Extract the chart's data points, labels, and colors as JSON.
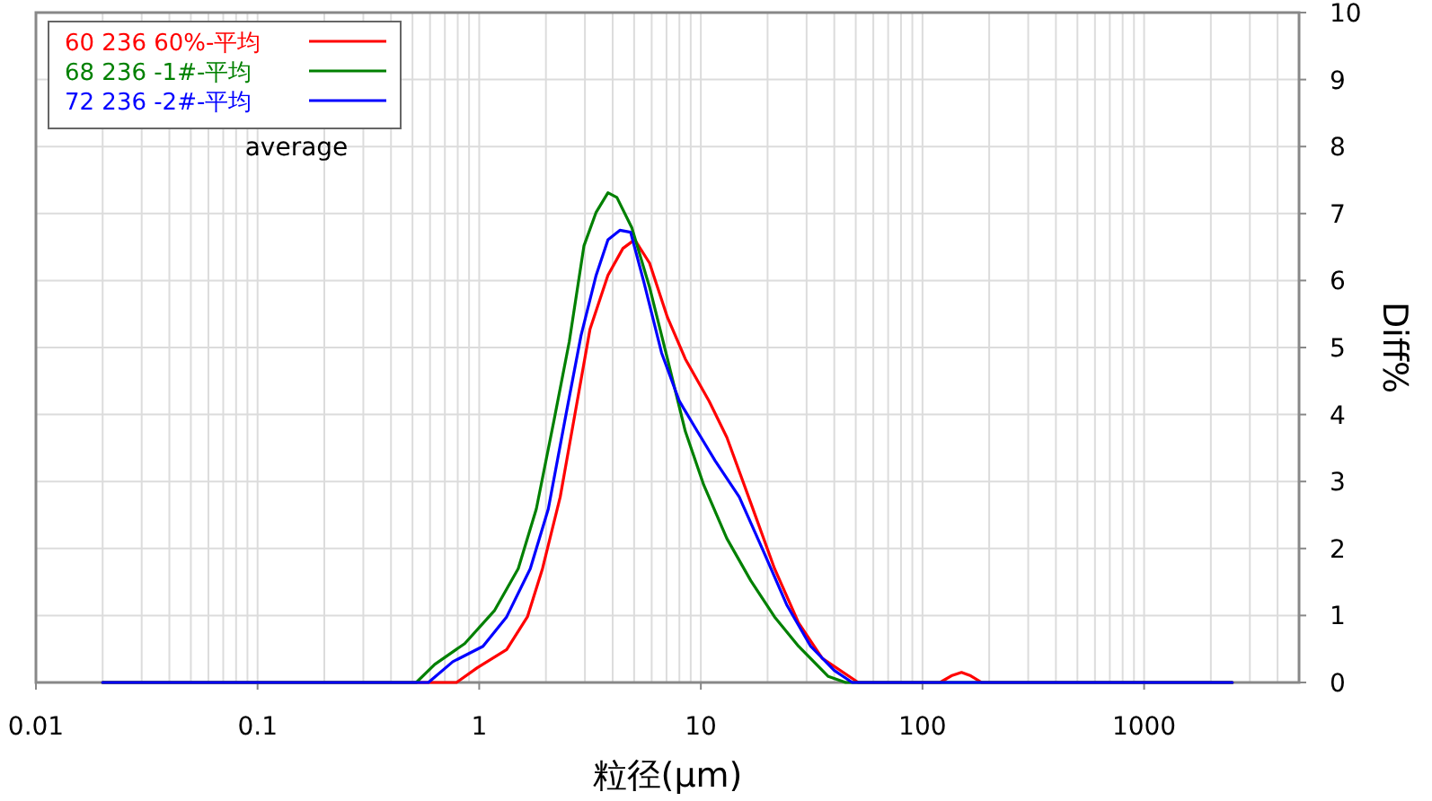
{
  "chart_data": {
    "type": "line",
    "xlabel": "粒径(μm)",
    "ylabel": "Diff%",
    "annotations": [
      "average"
    ],
    "log": "x",
    "grid": true,
    "legend": "top left",
    "line_style": "solid",
    "xlim": [
      0.01,
      5000
    ],
    "xticks": [
      0.01,
      0.1,
      1,
      10,
      100,
      1000
    ],
    "ylim": [
      0,
      10
    ],
    "yticks": [
      0,
      1,
      2,
      3,
      4,
      5,
      6,
      7,
      8,
      9,
      10
    ],
    "series": [
      {
        "name": "60 236 60%-平均",
        "color": "#ff0000",
        "x": [
          0.02,
          0.79,
          0.98,
          1.33,
          1.65,
          1.93,
          2.32,
          2.8,
          3.16,
          3.81,
          4.45,
          5.03,
          5.87,
          7.07,
          8.51,
          10.9,
          13.1,
          16.8,
          21.5,
          27.6,
          35.3,
          51.3,
          120,
          135,
          150,
          165,
          185,
          2500
        ],
        "values": [
          0,
          0,
          0.22,
          0.49,
          0.98,
          1.7,
          2.77,
          4.29,
          5.27,
          6.08,
          6.48,
          6.61,
          6.26,
          5.45,
          4.83,
          4.2,
          3.66,
          2.68,
          1.7,
          0.89,
          0.36,
          0,
          0,
          0.1,
          0.15,
          0.1,
          0,
          0
        ]
      },
      {
        "name": "68 236 -1#-平均",
        "color": "#008000",
        "x": [
          0.02,
          0.52,
          0.63,
          0.86,
          1.17,
          1.5,
          1.81,
          2.18,
          2.55,
          2.97,
          3.37,
          3.81,
          4.18,
          4.88,
          5.87,
          7.07,
          8.51,
          10.3,
          13.1,
          16.8,
          21.5,
          27.6,
          37.6,
          45,
          2500
        ],
        "values": [
          0,
          0,
          0.27,
          0.58,
          1.07,
          1.7,
          2.59,
          3.93,
          5.09,
          6.52,
          7.02,
          7.31,
          7.24,
          6.79,
          5.9,
          4.83,
          3.75,
          2.95,
          2.15,
          1.52,
          0.98,
          0.54,
          0.09,
          0,
          0
        ]
      },
      {
        "name": "72 236 -2#-平均",
        "color": "#0000ff",
        "x": [
          0.02,
          0.59,
          0.76,
          1.04,
          1.33,
          1.7,
          2.05,
          2.47,
          2.88,
          3.37,
          3.81,
          4.31,
          4.82,
          5.52,
          6.65,
          8.0,
          9.64,
          11.6,
          14.9,
          19.1,
          24.4,
          31.3,
          40.0,
          48.2,
          2500
        ],
        "values": [
          0,
          0,
          0.31,
          0.54,
          0.98,
          1.7,
          2.59,
          4.02,
          5.18,
          6.08,
          6.61,
          6.75,
          6.72,
          5.99,
          4.92,
          4.2,
          3.75,
          3.31,
          2.77,
          1.97,
          1.16,
          0.54,
          0.18,
          0,
          0
        ]
      }
    ]
  }
}
